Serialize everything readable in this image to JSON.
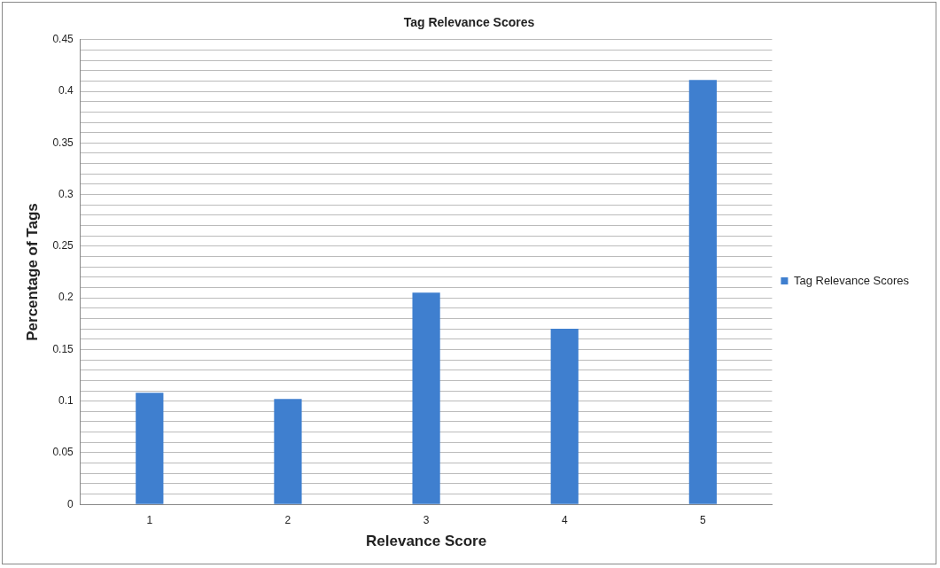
{
  "chart_data": {
    "type": "bar",
    "title": "Tag Relevance Scores",
    "xlabel": "Relevance Score",
    "ylabel": "Percentage of Tags",
    "categories": [
      "1",
      "2",
      "3",
      "4",
      "5"
    ],
    "series": [
      {
        "name": "Tag Relevance Scores",
        "color": "#3f7fcf",
        "values": [
          0.108,
          0.102,
          0.205,
          0.17,
          0.411
        ]
      }
    ],
    "ylim": [
      0,
      0.45
    ],
    "yticks": [
      0,
      {
        "value": 0.01,
        "label": null
      },
      {
        "value": 0.02,
        "label": null
      },
      {
        "value": 0.03,
        "label": null
      },
      {
        "value": 0.04,
        "label": null
      },
      0.05,
      {
        "value": 0.06,
        "label": null
      },
      {
        "value": 0.07,
        "label": null
      },
      {
        "value": 0.08,
        "label": null
      },
      {
        "value": 0.09,
        "label": null
      },
      0.1,
      {
        "value": 0.11,
        "label": null
      },
      {
        "value": 0.12,
        "label": null
      },
      {
        "value": 0.13,
        "label": null
      },
      {
        "value": 0.14,
        "label": null
      },
      0.15,
      {
        "value": 0.16,
        "label": null
      },
      {
        "value": 0.17,
        "label": null
      },
      {
        "value": 0.18,
        "label": null
      },
      {
        "value": 0.19,
        "label": null
      },
      0.2,
      {
        "value": 0.21,
        "label": null
      },
      {
        "value": 0.22,
        "label": null
      },
      {
        "value": 0.23,
        "label": null
      },
      {
        "value": 0.24,
        "label": null
      },
      0.25,
      {
        "value": 0.26,
        "label": null
      },
      {
        "value": 0.27,
        "label": null
      },
      {
        "value": 0.28,
        "label": null
      },
      {
        "value": 0.29,
        "label": null
      },
      0.3,
      {
        "value": 0.31,
        "label": null
      },
      {
        "value": 0.32,
        "label": null
      },
      {
        "value": 0.33,
        "label": null
      },
      {
        "value": 0.34,
        "label": null
      },
      0.35,
      {
        "value": 0.36,
        "label": null
      },
      {
        "value": 0.37,
        "label": null
      },
      {
        "value": 0.38,
        "label": null
      },
      {
        "value": 0.39,
        "label": null
      },
      0.4,
      {
        "value": 0.41,
        "label": null
      },
      {
        "value": 0.42,
        "label": null
      },
      {
        "value": 0.43,
        "label": null
      },
      {
        "value": 0.44,
        "label": null
      },
      0.45
    ],
    "grid": "y",
    "legend": "right"
  }
}
